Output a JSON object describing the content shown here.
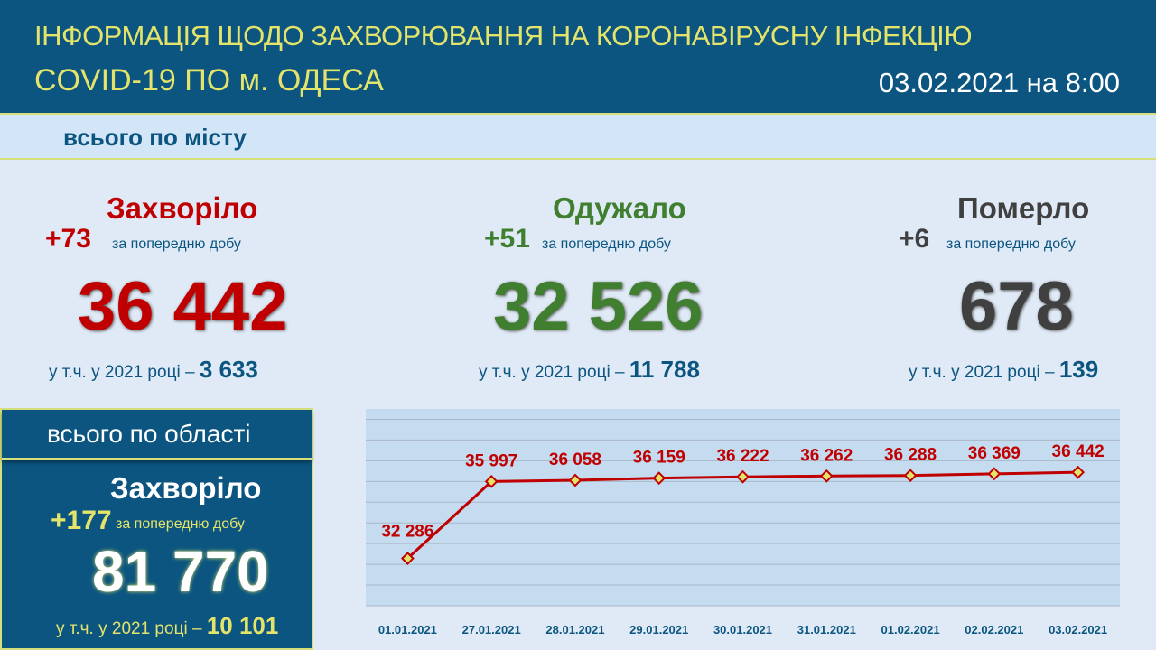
{
  "header": {
    "title_line1": "ІНФОРМАЦІЯ ЩОДО ЗАХВОРЮВАННЯ НА КОРОНАВІРУСНУ ІНФЕКЦІЮ",
    "title_line2": "COVID-19 ПО м. ОДЕСА",
    "date": "03.02.2021 на 8:00"
  },
  "city": {
    "section_label": "всього по місту",
    "sick": {
      "title": "Захворіло",
      "delta": "+73",
      "delta_label": "за попередню добу",
      "total": "36 442",
      "year_label": "у т.ч. у 2021 році –",
      "year_value": "3 633"
    },
    "recovered": {
      "title": "Одужало",
      "delta": "+51",
      "delta_label": "за попередню добу",
      "total": "32 526",
      "year_label": "у т.ч. у 2021 році –",
      "year_value": "11 788"
    },
    "died": {
      "title": "Померло",
      "delta": "+6",
      "delta_label": "за попередню добу",
      "total": "678",
      "year_label": "у т.ч. у 2021 році –",
      "year_value": "139"
    }
  },
  "region": {
    "section_label": "всього по області",
    "title": "Захворіло",
    "delta": "+177",
    "delta_label": "за попередню добу",
    "total": "81 770",
    "year_label": "у т.ч. у 2021 році –",
    "year_value": "10 101"
  },
  "colors": {
    "header": "#0b5580",
    "accent": "#e4e46a",
    "sick": "#c00000",
    "recovered": "#3f7f2f",
    "died": "#404040"
  },
  "chart_data": {
    "type": "line",
    "title": "",
    "xlabel": "",
    "ylabel": "",
    "categories": [
      "01.01.2021",
      "27.01.2021",
      "28.01.2021",
      "29.01.2021",
      "30.01.2021",
      "31.01.2021",
      "01.02.2021",
      "02.02.2021",
      "03.02.2021"
    ],
    "series": [
      {
        "name": "Захворіло",
        "values": [
          32286,
          35997,
          36058,
          36159,
          36222,
          36262,
          36288,
          36369,
          36442
        ]
      }
    ],
    "labels": [
      "32 286",
      "35 997",
      "36 058",
      "36 159",
      "36 222",
      "36 262",
      "36 288",
      "36 369",
      "36 442"
    ],
    "ylim": [
      30000,
      39500
    ],
    "grid": true
  }
}
